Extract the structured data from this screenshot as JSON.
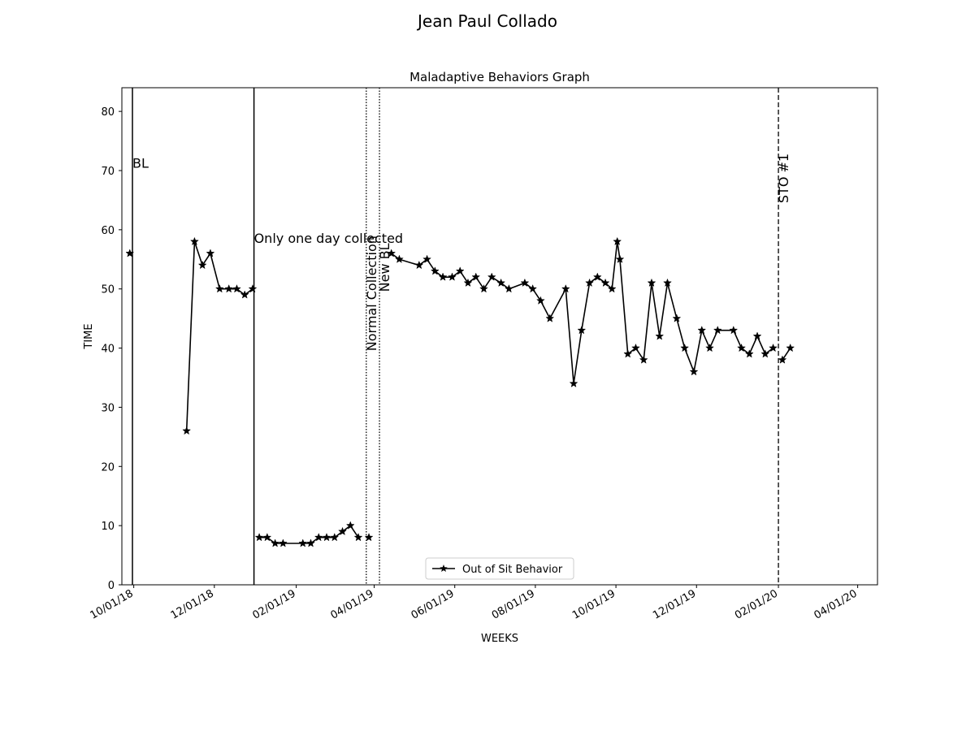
{
  "figure": {
    "suptitle": "Jean Paul  Collado"
  },
  "chart_data": {
    "type": "line",
    "title": "Maladaptive Behaviors Graph",
    "xlabel": "WEEKS",
    "ylabel": "TIME",
    "xlim": [
      "2018-09-22",
      "2020-04-16"
    ],
    "ylim": [
      0,
      84
    ],
    "yticks": [
      0,
      10,
      20,
      30,
      40,
      50,
      60,
      70,
      80
    ],
    "xticks": [
      {
        "date": "2018-10-01",
        "label": "10/01/18"
      },
      {
        "date": "2018-12-01",
        "label": "12/01/18"
      },
      {
        "date": "2019-02-01",
        "label": "02/01/19"
      },
      {
        "date": "2019-04-01",
        "label": "04/01/19"
      },
      {
        "date": "2019-06-01",
        "label": "06/01/19"
      },
      {
        "date": "2019-08-01",
        "label": "08/01/19"
      },
      {
        "date": "2019-10-01",
        "label": "10/01/19"
      },
      {
        "date": "2019-12-01",
        "label": "12/01/19"
      },
      {
        "date": "2020-02-01",
        "label": "02/01/20"
      },
      {
        "date": "2020-04-01",
        "label": "04/01/20"
      }
    ],
    "grid": false,
    "legend": {
      "placement": "lower center",
      "entries": [
        "Out of Sit Behavior"
      ]
    },
    "series": [
      {
        "name": "Out of Sit Behavior",
        "color": "#000000",
        "marker": "star",
        "segments": [
          [
            {
              "x": "2018-09-28",
              "y": 56
            }
          ],
          [
            {
              "x": "2018-11-10",
              "y": 26
            },
            {
              "x": "2018-11-16",
              "y": 58
            },
            {
              "x": "2018-11-22",
              "y": 54
            },
            {
              "x": "2018-11-28",
              "y": 56
            },
            {
              "x": "2018-12-05",
              "y": 50
            },
            {
              "x": "2018-12-12",
              "y": 50
            },
            {
              "x": "2018-12-18",
              "y": 50
            },
            {
              "x": "2018-12-24",
              "y": 49
            },
            {
              "x": "2018-12-30",
              "y": 50
            }
          ],
          [
            {
              "x": "2019-01-04",
              "y": 8
            },
            {
              "x": "2019-01-10",
              "y": 8
            },
            {
              "x": "2019-01-16",
              "y": 7
            },
            {
              "x": "2019-01-22",
              "y": 7
            },
            {
              "x": "2019-02-06",
              "y": 7
            },
            {
              "x": "2019-02-12",
              "y": 7
            },
            {
              "x": "2019-02-18",
              "y": 8
            },
            {
              "x": "2019-02-24",
              "y": 8
            },
            {
              "x": "2019-03-02",
              "y": 8
            },
            {
              "x": "2019-03-08",
              "y": 9
            },
            {
              "x": "2019-03-14",
              "y": 10
            },
            {
              "x": "2019-03-20",
              "y": 8
            }
          ],
          [
            {
              "x": "2019-03-28",
              "y": 8
            }
          ],
          [
            {
              "x": "2019-04-14",
              "y": 56
            },
            {
              "x": "2019-04-20",
              "y": 55
            },
            {
              "x": "2019-05-05",
              "y": 54
            },
            {
              "x": "2019-05-11",
              "y": 55
            },
            {
              "x": "2019-05-17",
              "y": 53
            },
            {
              "x": "2019-05-23",
              "y": 52
            },
            {
              "x": "2019-05-30",
              "y": 52
            },
            {
              "x": "2019-06-05",
              "y": 53
            },
            {
              "x": "2019-06-11",
              "y": 51
            },
            {
              "x": "2019-06-17",
              "y": 52
            },
            {
              "x": "2019-06-23",
              "y": 50
            },
            {
              "x": "2019-06-29",
              "y": 52
            },
            {
              "x": "2019-07-06",
              "y": 51
            },
            {
              "x": "2019-07-12",
              "y": 50
            },
            {
              "x": "2019-07-24",
              "y": 51
            },
            {
              "x": "2019-07-30",
              "y": 50
            },
            {
              "x": "2019-08-05",
              "y": 48
            },
            {
              "x": "2019-08-12",
              "y": 45
            },
            {
              "x": "2019-08-24",
              "y": 50
            },
            {
              "x": "2019-08-30",
              "y": 34
            },
            {
              "x": "2019-09-05",
              "y": 43
            },
            {
              "x": "2019-09-11",
              "y": 51
            },
            {
              "x": "2019-09-17",
              "y": 52
            },
            {
              "x": "2019-09-23",
              "y": 51
            },
            {
              "x": "2019-09-28",
              "y": 50
            },
            {
              "x": "2019-10-02",
              "y": 58
            },
            {
              "x": "2019-10-04",
              "y": 55
            },
            {
              "x": "2019-10-10",
              "y": 39
            },
            {
              "x": "2019-10-16",
              "y": 40
            },
            {
              "x": "2019-10-22",
              "y": 38
            },
            {
              "x": "2019-10-28",
              "y": 51
            },
            {
              "x": "2019-11-03",
              "y": 42
            },
            {
              "x": "2019-11-09",
              "y": 51
            },
            {
              "x": "2019-11-16",
              "y": 45
            },
            {
              "x": "2019-11-22",
              "y": 40
            },
            {
              "x": "2019-11-29",
              "y": 36
            },
            {
              "x": "2019-12-05",
              "y": 43
            },
            {
              "x": "2019-12-11",
              "y": 40
            },
            {
              "x": "2019-12-17",
              "y": 43
            },
            {
              "x": "2019-12-29",
              "y": 43
            },
            {
              "x": "2020-01-04",
              "y": 40
            },
            {
              "x": "2020-01-10",
              "y": 39
            },
            {
              "x": "2020-01-16",
              "y": 42
            },
            {
              "x": "2020-01-22",
              "y": 39
            },
            {
              "x": "2020-01-28",
              "y": 40
            }
          ],
          [
            {
              "x": "2020-02-04",
              "y": 38
            },
            {
              "x": "2020-02-10",
              "y": 40
            }
          ]
        ]
      }
    ],
    "phase_lines": [
      {
        "date": "2018-09-30",
        "style": "solid",
        "label": "BL",
        "label_orientation": "horizontal"
      },
      {
        "date": "2018-12-31",
        "style": "solid",
        "label": "Only one day collected",
        "label_orientation": "horizontal"
      },
      {
        "date": "2019-03-26",
        "style": "dotted",
        "label": "Normal Collection",
        "label_orientation": "vertical"
      },
      {
        "date": "2019-04-05",
        "style": "dotted",
        "label": "New BL",
        "label_orientation": "vertical"
      },
      {
        "date": "2020-02-01",
        "style": "dashed",
        "label": "STO #1",
        "label_orientation": "vertical"
      }
    ]
  }
}
